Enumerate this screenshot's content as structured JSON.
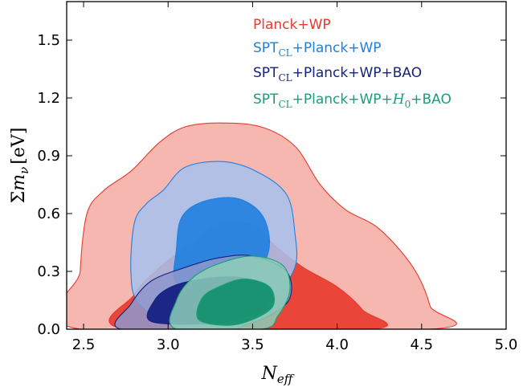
{
  "chart_data": {
    "type": "contour",
    "xlabel": "N_eff",
    "ylabel": "Σm_ν [eV]",
    "xlim": [
      2.4,
      5.0
    ],
    "ylim": [
      0.0,
      1.7
    ],
    "x_ticks": [
      "2.5",
      "3.0",
      "3.5",
      "4.0",
      "4.5",
      "5.0"
    ],
    "y_ticks": [
      "0.0",
      "0.3",
      "0.6",
      "0.9",
      "1.2",
      "1.5"
    ],
    "legend_position": "top-right",
    "series": [
      {
        "name": "Planck+WP",
        "color": "#e8392b",
        "outer_fill": "#f5aaa3",
        "inner_fill": "#e8392b",
        "contour_95": [
          [
            2.48,
            0.0
          ],
          [
            2.48,
            0.3
          ],
          [
            2.52,
            0.6
          ],
          [
            2.62,
            0.72
          ],
          [
            2.78,
            0.82
          ],
          [
            2.95,
            0.97
          ],
          [
            3.1,
            1.05
          ],
          [
            3.3,
            1.07
          ],
          [
            3.55,
            1.05
          ],
          [
            3.75,
            0.95
          ],
          [
            3.9,
            0.75
          ],
          [
            4.05,
            0.62
          ],
          [
            4.25,
            0.52
          ],
          [
            4.45,
            0.32
          ],
          [
            4.55,
            0.12
          ],
          [
            4.55,
            0.0
          ]
        ],
        "contour_68": [
          [
            2.75,
            0.0
          ],
          [
            2.8,
            0.18
          ],
          [
            2.95,
            0.32
          ],
          [
            3.1,
            0.42
          ],
          [
            3.3,
            0.54
          ],
          [
            3.5,
            0.54
          ],
          [
            3.65,
            0.42
          ],
          [
            3.8,
            0.32
          ],
          [
            4.0,
            0.22
          ],
          [
            4.15,
            0.1
          ],
          [
            4.2,
            0.0
          ]
        ]
      },
      {
        "name": "SPT_CL+Planck+WP",
        "color": "#1f7fe0",
        "outer_fill": "#a7c2ee",
        "inner_fill": "#1f7fe0",
        "contour_95": [
          [
            2.82,
            0.14
          ],
          [
            2.78,
            0.3
          ],
          [
            2.8,
            0.55
          ],
          [
            2.87,
            0.65
          ],
          [
            2.97,
            0.72
          ],
          [
            3.1,
            0.84
          ],
          [
            3.32,
            0.87
          ],
          [
            3.52,
            0.82
          ],
          [
            3.7,
            0.7
          ],
          [
            3.75,
            0.5
          ],
          [
            3.75,
            0.32
          ],
          [
            3.62,
            0.16
          ],
          [
            3.45,
            0.07
          ],
          [
            3.2,
            0.03
          ],
          [
            3.0,
            0.04
          ]
        ],
        "contour_68": [
          [
            3.05,
            0.24
          ],
          [
            3.05,
            0.42
          ],
          [
            3.08,
            0.58
          ],
          [
            3.2,
            0.66
          ],
          [
            3.4,
            0.68
          ],
          [
            3.55,
            0.6
          ],
          [
            3.6,
            0.45
          ],
          [
            3.55,
            0.32
          ],
          [
            3.42,
            0.24
          ],
          [
            3.25,
            0.2
          ]
        ]
      },
      {
        "name": "SPT_CL+Planck+WP+BAO",
        "color": "#14237c",
        "outer_fill": "#8e98cd",
        "inner_fill": "#101a80",
        "contour_95": [
          [
            2.72,
            0.0
          ],
          [
            2.78,
            0.13
          ],
          [
            2.9,
            0.25
          ],
          [
            3.1,
            0.32
          ],
          [
            3.3,
            0.37
          ],
          [
            3.5,
            0.38
          ],
          [
            3.7,
            0.3
          ],
          [
            3.72,
            0.16
          ],
          [
            3.6,
            0.07
          ],
          [
            3.45,
            0.02
          ],
          [
            3.35,
            0.0
          ]
        ],
        "contour_68": [
          [
            2.9,
            0.04
          ],
          [
            2.92,
            0.15
          ],
          [
            3.02,
            0.22
          ],
          [
            3.2,
            0.26
          ],
          [
            3.4,
            0.27
          ],
          [
            3.58,
            0.23
          ],
          [
            3.6,
            0.13
          ],
          [
            3.45,
            0.06
          ],
          [
            3.25,
            0.03
          ]
        ]
      },
      {
        "name": "SPT_CL+Planck+WP+H_0+BAO",
        "color": "#1a9e78",
        "outer_fill": "#8ccfb9",
        "inner_fill": "#0e8f6a",
        "contour_95": [
          [
            3.05,
            0.0
          ],
          [
            3.05,
            0.15
          ],
          [
            3.15,
            0.27
          ],
          [
            3.3,
            0.34
          ],
          [
            3.5,
            0.38
          ],
          [
            3.68,
            0.33
          ],
          [
            3.72,
            0.2
          ],
          [
            3.65,
            0.07
          ],
          [
            3.55,
            0.0
          ]
        ],
        "contour_68": [
          [
            3.18,
            0.05
          ],
          [
            3.2,
            0.16
          ],
          [
            3.3,
            0.22
          ],
          [
            3.45,
            0.26
          ],
          [
            3.6,
            0.22
          ],
          [
            3.62,
            0.12
          ],
          [
            3.5,
            0.05
          ],
          [
            3.35,
            0.02
          ]
        ]
      }
    ]
  },
  "legend": {
    "planck_wp": {
      "text": "Planck+WP"
    },
    "spt_planck_wp": {
      "pre": "SPT",
      "sub": "CL",
      "post": "+Planck+WP"
    },
    "spt_planck_wp_bao": {
      "pre": "SPT",
      "sub": "CL",
      "post": "+Planck+WP+BAO"
    },
    "spt_planck_wp_h0_bao": {
      "pre": "SPT",
      "sub": "CL",
      "mid": "+Planck+WP+",
      "h": "H",
      "hsub": "0",
      "post": "+BAO"
    }
  },
  "axes": {
    "x_label_main": "N",
    "x_label_sub": "eff",
    "y_label_main": "Σm",
    "y_label_sub": "ν",
    "y_label_unit": "[eV]"
  }
}
